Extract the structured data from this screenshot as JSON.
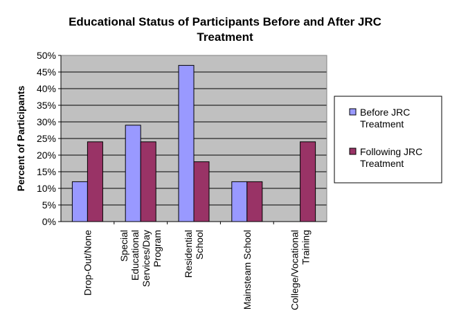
{
  "chart_data": {
    "type": "bar",
    "title": [
      "Educational Status of Participants Before and After JRC",
      "Treatment"
    ],
    "ylabel": "Percent of Participants",
    "xlabel": "",
    "ylim": [
      0,
      50
    ],
    "ytick_step": 5,
    "yticks": [
      "0%",
      "5%",
      "10%",
      "15%",
      "20%",
      "25%",
      "30%",
      "35%",
      "40%",
      "45%",
      "50%"
    ],
    "grid": true,
    "legend_position": "right",
    "categories": [
      [
        "Drop-Out/None"
      ],
      [
        "Special",
        "Educational",
        "Services/Day",
        "Program"
      ],
      [
        "Residential",
        "School"
      ],
      [
        "Mainsteam School"
      ],
      [
        "College/Vocational",
        "Training"
      ]
    ],
    "series": [
      {
        "name": [
          "Before JRC",
          "Treatment"
        ],
        "color": "#9999ff",
        "values": [
          12,
          29,
          47,
          12,
          0
        ]
      },
      {
        "name": [
          "Following JRC",
          "Treatment"
        ],
        "color": "#993366",
        "values": [
          24,
          24,
          18,
          12,
          24
        ]
      }
    ],
    "plot_background": "#c0c0c0"
  }
}
